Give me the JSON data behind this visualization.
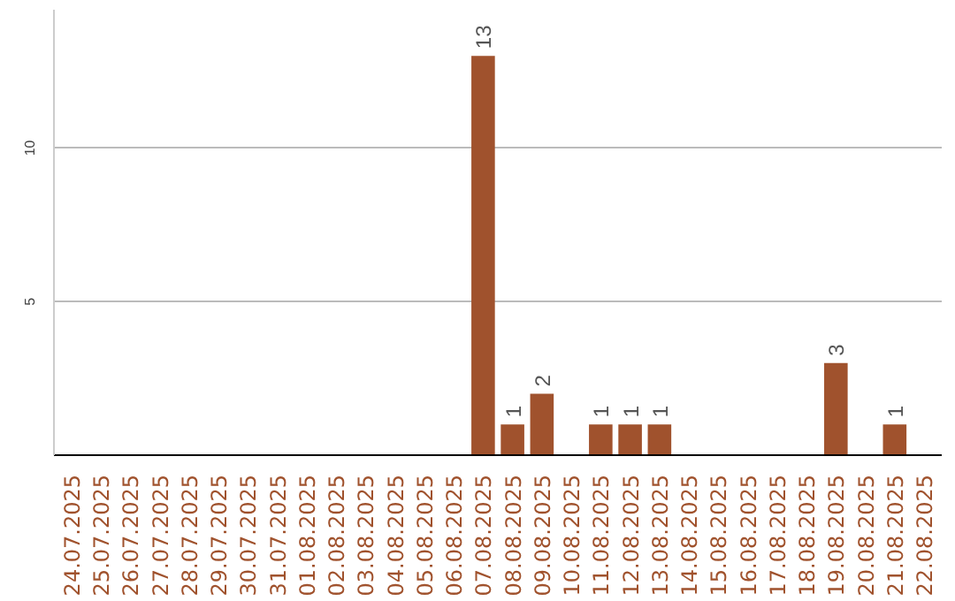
{
  "chart_data": {
    "type": "bar",
    "categories": [
      "24.07.2025",
      "25.07.2025",
      "26.07.2025",
      "27.07.2025",
      "28.07.2025",
      "29.07.2025",
      "30.07.2025",
      "31.07.2025",
      "01.08.2025",
      "02.08.2025",
      "03.08.2025",
      "04.08.2025",
      "05.08.2025",
      "06.08.2025",
      "07.08.2025",
      "08.08.2025",
      "09.08.2025",
      "10.08.2025",
      "11.08.2025",
      "12.08.2025",
      "13.08.2025",
      "14.08.2025",
      "15.08.2025",
      "16.08.2025",
      "17.08.2025",
      "18.08.2025",
      "19.08.2025",
      "20.08.2025",
      "21.08.2025",
      "22.08.2025"
    ],
    "values": [
      0,
      0,
      0,
      0,
      0,
      0,
      0,
      0,
      0,
      0,
      0,
      0,
      0,
      0,
      13,
      1,
      2,
      0,
      1,
      1,
      1,
      0,
      0,
      0,
      0,
      0,
      3,
      0,
      1,
      0
    ],
    "value_labels": [
      null,
      null,
      null,
      null,
      null,
      null,
      null,
      null,
      null,
      null,
      null,
      null,
      null,
      null,
      "13",
      "1",
      "2",
      null,
      "1",
      "1",
      "1",
      null,
      null,
      null,
      null,
      null,
      "3",
      null,
      "1",
      null
    ],
    "color": "#a0522d",
    "ylim": [
      0,
      14.5
    ],
    "yticks": [
      5,
      10
    ],
    "grid": "y"
  }
}
